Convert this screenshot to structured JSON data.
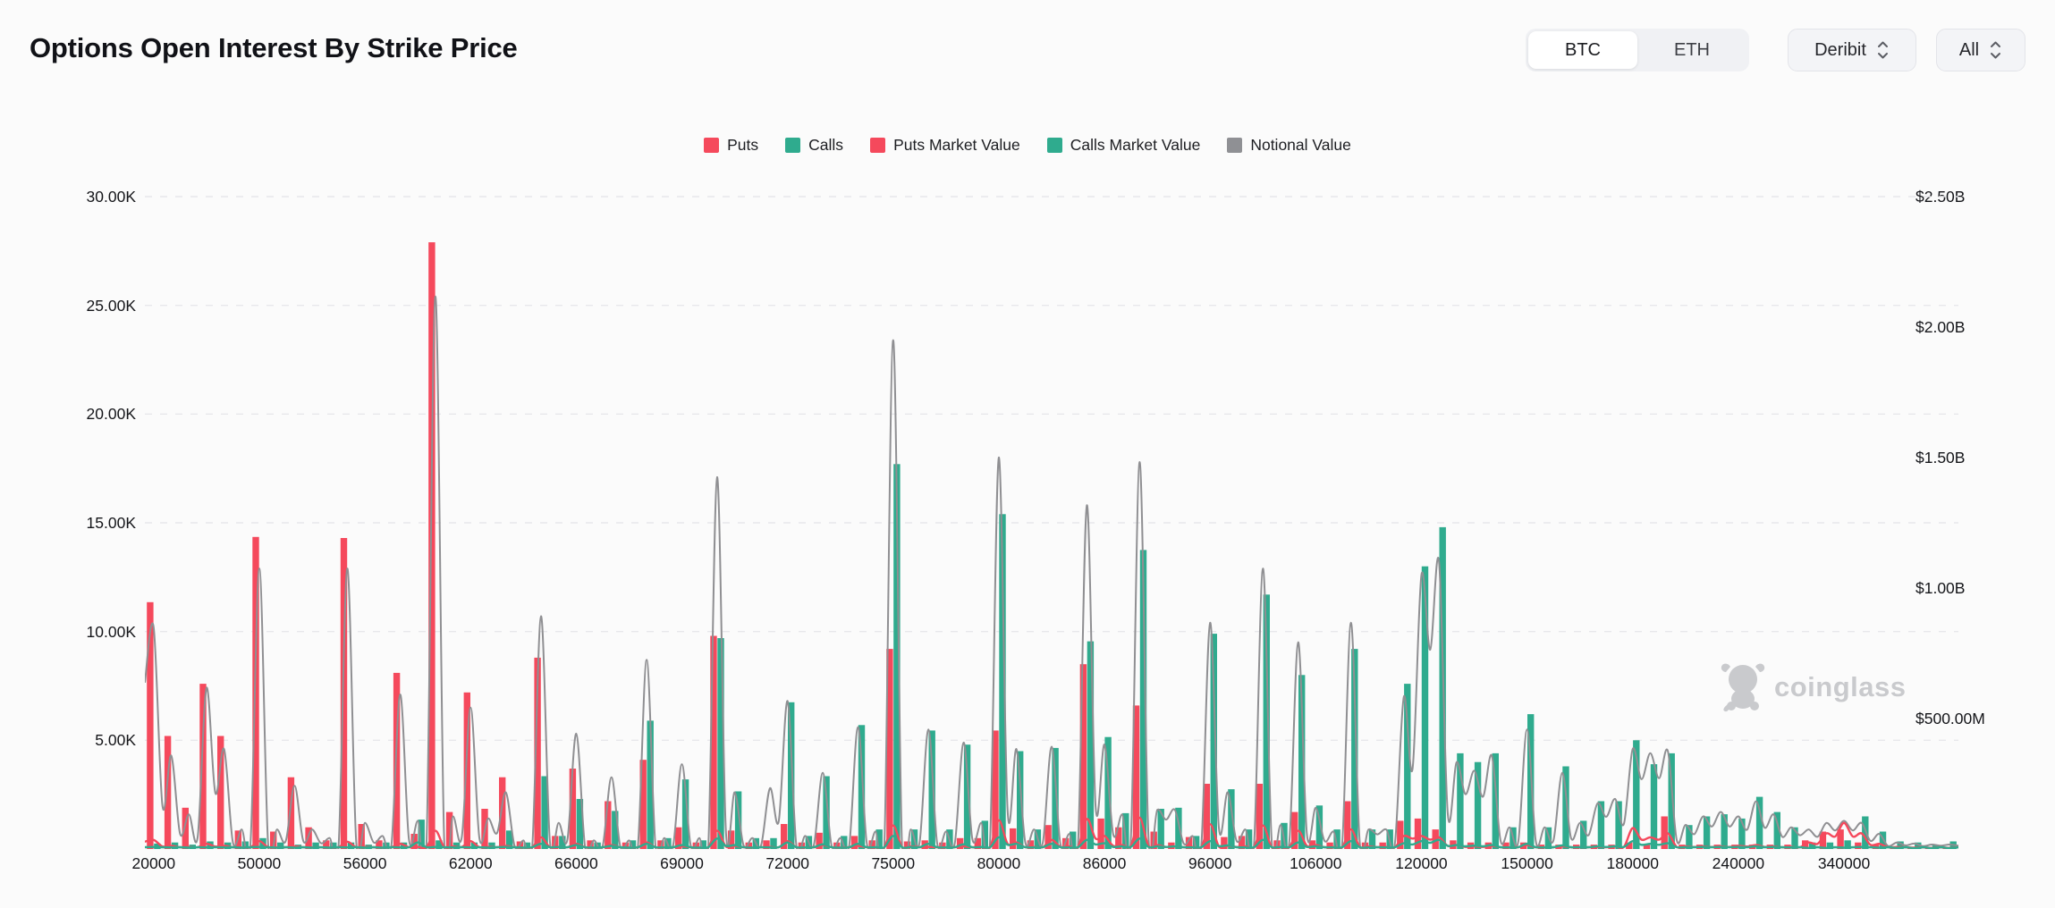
{
  "header": {
    "title": "Options Open Interest By Strike Price",
    "asset_toggle": {
      "options": [
        "BTC",
        "ETH"
      ],
      "selected": "BTC"
    },
    "exchange_select": {
      "value": "Deribit"
    },
    "expiry_select": {
      "value": "All"
    }
  },
  "watermark": {
    "text": "coinglass",
    "icon": "coinglass-bear-icon",
    "color": "#c9cacd"
  },
  "legend": {
    "items": [
      {
        "label": "Puts",
        "color": "#f5495c"
      },
      {
        "label": "Calls",
        "color": "#2fab8e"
      },
      {
        "label": "Puts Market Value",
        "color": "#f5495c"
      },
      {
        "label": "Calls Market Value",
        "color": "#2fab8e"
      },
      {
        "label": "Notional Value",
        "color": "#8f9094"
      }
    ]
  },
  "chart_data": {
    "type": "bar",
    "subtype": "dual-axis bars (open interest, left) + smooth value lines (USD, right)",
    "title": "Options Open Interest By Strike Price",
    "grid": "horizontal dashed lines at left-axis ticks",
    "left_axis": {
      "unit": "contracts",
      "labels": [
        "30.00K",
        "25.00K",
        "20.00K",
        "15.00K",
        "10.00K",
        "5.00K"
      ],
      "values_k": [
        30,
        25,
        20,
        15,
        10,
        5
      ],
      "max_k": 30
    },
    "right_axis": {
      "unit": "USD",
      "labels": [
        "$2.50B",
        "$2.00B",
        "$1.50B",
        "$1.00B",
        "$500.00M"
      ],
      "values_musd": [
        2500,
        2000,
        1500,
        1000,
        500
      ],
      "max_musd": 2500
    },
    "x_axis": {
      "label_every_n_slots": 6,
      "ticks": [
        {
          "label": "20000",
          "slot": 0
        },
        {
          "label": "50000",
          "slot": 6
        },
        {
          "label": "56000",
          "slot": 12
        },
        {
          "label": "62000",
          "slot": 18
        },
        {
          "label": "66000",
          "slot": 24
        },
        {
          "label": "69000",
          "slot": 30
        },
        {
          "label": "72000",
          "slot": 36
        },
        {
          "label": "75000",
          "slot": 42
        },
        {
          "label": "80000",
          "slot": 48
        },
        {
          "label": "86000",
          "slot": 54
        },
        {
          "label": "96000",
          "slot": 60
        },
        {
          "label": "106000",
          "slot": 66
        },
        {
          "label": "120000",
          "slot": 72
        },
        {
          "label": "150000",
          "slot": 78
        },
        {
          "label": "180000",
          "slot": 84
        },
        {
          "label": "240000",
          "slot": 90
        },
        {
          "label": "340000",
          "slot": 96
        }
      ]
    },
    "series": [
      {
        "name": "Puts",
        "type": "bar",
        "axis": "left",
        "unit": "K contracts",
        "color": "#f5495c"
      },
      {
        "name": "Calls",
        "type": "bar",
        "axis": "left",
        "unit": "K contracts",
        "color": "#2fab8e"
      },
      {
        "name": "Puts Market Value",
        "type": "line",
        "axis": "right",
        "unit": "$M",
        "color": "#f5495c"
      },
      {
        "name": "Calls Market Value",
        "type": "line",
        "axis": "right",
        "unit": "$M",
        "color": "#2fab8e"
      },
      {
        "name": "Notional Value",
        "type": "line",
        "axis": "right",
        "unit": "$M",
        "color": "#8f8f92"
      }
    ],
    "puts_k": [
      11.35,
      5.2,
      1.9,
      7.6,
      5.2,
      0.85,
      14.35,
      0.8,
      3.3,
      1.0,
      0.4,
      14.3,
      1.15,
      0.4,
      8.1,
      0.7,
      27.9,
      1.7,
      7.2,
      1.85,
      3.3,
      0.35,
      8.8,
      0.6,
      3.7,
      0.4,
      2.2,
      0.3,
      4.1,
      0.4,
      1.0,
      0.3,
      9.8,
      0.85,
      0.3,
      0.4,
      1.15,
      0.3,
      0.75,
      0.3,
      0.6,
      0.4,
      9.2,
      0.35,
      0.4,
      0.3,
      0.5,
      0.5,
      5.45,
      0.95,
      0.4,
      1.1,
      0.5,
      8.5,
      1.4,
      1.0,
      6.6,
      0.8,
      0.3,
      0.55,
      3.0,
      0.55,
      0.6,
      3.0,
      0.4,
      1.7,
      0.4,
      0.3,
      2.2,
      0.3,
      0.3,
      1.3,
      1.4,
      0.9,
      0.4,
      0.3,
      0.3,
      0.3,
      0.3,
      0.2,
      0.2,
      0.2,
      0.2,
      0.2,
      0.3,
      0.2,
      1.5,
      0.2,
      0.2,
      0.2,
      0.2,
      0.2,
      0.2,
      0.2,
      0.4,
      0.8,
      0.9,
      0.3,
      0.2,
      0.1,
      0.1,
      0.1,
      0.1
    ],
    "calls_k": [
      0.25,
      0.3,
      0.2,
      0.35,
      0.3,
      0.35,
      0.5,
      0.3,
      0.2,
      0.3,
      0.3,
      0.3,
      0.2,
      0.3,
      0.3,
      1.35,
      0.4,
      0.3,
      0.3,
      0.3,
      0.85,
      0.3,
      3.35,
      0.6,
      2.3,
      0.3,
      1.75,
      0.4,
      5.9,
      0.5,
      3.2,
      0.4,
      9.7,
      2.65,
      0.5,
      0.5,
      6.75,
      0.6,
      3.35,
      0.6,
      5.7,
      0.9,
      17.7,
      0.9,
      5.45,
      0.9,
      4.8,
      1.3,
      15.4,
      4.5,
      0.9,
      4.65,
      0.8,
      9.55,
      5.15,
      1.65,
      13.75,
      1.85,
      1.9,
      0.6,
      9.9,
      2.75,
      0.9,
      11.7,
      1.2,
      8.0,
      2.0,
      0.9,
      9.2,
      0.9,
      0.9,
      7.6,
      13.0,
      14.8,
      4.4,
      4.0,
      4.4,
      1.0,
      6.2,
      1.0,
      3.8,
      1.3,
      2.2,
      2.2,
      5.0,
      3.9,
      4.4,
      1.1,
      1.5,
      1.6,
      1.4,
      2.4,
      1.7,
      1.0,
      0.3,
      0.3,
      0.4,
      1.5,
      0.8,
      0.35,
      0.3,
      0.2,
      0.35
    ],
    "notional_musd": [
      850,
      358,
      133,
      617,
      383,
      75,
      1075,
      75,
      242,
      75,
      42,
      1075,
      100,
      50,
      592,
      108,
      2117,
      125,
      542,
      117,
      217,
      33,
      892,
      100,
      442,
      33,
      275,
      33,
      725,
      42,
      325,
      42,
      1425,
      217,
      42,
      233,
      567,
      50,
      292,
      42,
      467,
      67,
      1950,
      75,
      458,
      67,
      408,
      100,
      1500,
      383,
      75,
      392,
      58,
      1317,
      400,
      133,
      1483,
      150,
      150,
      50,
      867,
      217,
      75,
      1075,
      92,
      792,
      158,
      67,
      867,
      75,
      75,
      583,
      1050,
      1100,
      333,
      300,
      358,
      83,
      458,
      83,
      292,
      100,
      175,
      192,
      383,
      367,
      375,
      92,
      125,
      142,
      125,
      183,
      133,
      83,
      75,
      100,
      108,
      100,
      58,
      25,
      21,
      17,
      17
    ],
    "puts_mv_musd": [
      35,
      12,
      8,
      20,
      12,
      6,
      30,
      6,
      10,
      6,
      5,
      28,
      8,
      5,
      20,
      8,
      70,
      10,
      30,
      8,
      12,
      5,
      45,
      8,
      20,
      5,
      15,
      5,
      25,
      6,
      10,
      5,
      70,
      12,
      5,
      8,
      30,
      6,
      15,
      5,
      12,
      6,
      90,
      10,
      8,
      6,
      10,
      8,
      110,
      25,
      8,
      35,
      10,
      115,
      50,
      15,
      120,
      15,
      10,
      8,
      95,
      12,
      10,
      90,
      8,
      70,
      15,
      8,
      75,
      10,
      8,
      50,
      50,
      45,
      15,
      10,
      12,
      6,
      15,
      6,
      10,
      6,
      8,
      10,
      80,
      45,
      60,
      10,
      10,
      10,
      12,
      15,
      10,
      8,
      25,
      60,
      100,
      60,
      20,
      8,
      5,
      4,
      4
    ],
    "calls_mv_musd": [
      8,
      6,
      5,
      6,
      6,
      5,
      8,
      5,
      5,
      5,
      5,
      6,
      5,
      5,
      6,
      25,
      8,
      6,
      6,
      5,
      8,
      5,
      20,
      8,
      15,
      5,
      12,
      5,
      20,
      6,
      15,
      5,
      40,
      15,
      5,
      6,
      25,
      6,
      18,
      5,
      20,
      7,
      50,
      8,
      20,
      6,
      18,
      8,
      45,
      20,
      6,
      20,
      6,
      35,
      22,
      10,
      40,
      10,
      10,
      6,
      30,
      14,
      6,
      35,
      8,
      25,
      10,
      6,
      30,
      6,
      6,
      22,
      30,
      35,
      15,
      13,
      15,
      6,
      20,
      6,
      14,
      7,
      10,
      10,
      30,
      20,
      22,
      7,
      8,
      8,
      8,
      10,
      8,
      6,
      4,
      4,
      5,
      8,
      5,
      4,
      3,
      3,
      3
    ]
  }
}
